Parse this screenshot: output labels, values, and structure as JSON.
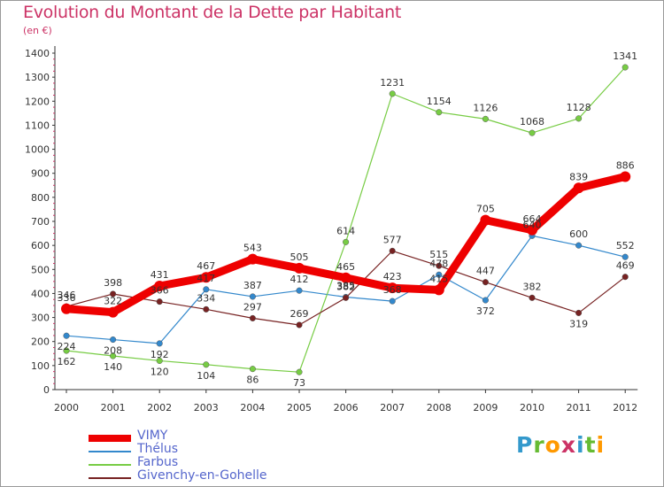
{
  "title": "Evolution du Montant de la Dette par Habitant",
  "subtitle": "(en €)",
  "logo": {
    "letters": [
      "P",
      "r",
      "o",
      "x",
      "i",
      "t",
      "i"
    ],
    "colors": [
      "#3399cc",
      "#66bb33",
      "#ff9900",
      "#cc3366",
      "#3399cc",
      "#66bb33",
      "#ff9900"
    ]
  },
  "chart_data": {
    "type": "line",
    "categories": [
      "2000",
      "2001",
      "2002",
      "2003",
      "2004",
      "2005",
      "2006",
      "2007",
      "2008",
      "2009",
      "2010",
      "2011",
      "2012"
    ],
    "ylim": [
      0,
      1400
    ],
    "yticks": [
      "0",
      "100",
      "200",
      "300",
      "400",
      "500",
      "600",
      "700",
      "800",
      "900",
      "1000",
      "1100",
      "1200",
      "1300",
      "1400"
    ],
    "grid": false,
    "legend_position": "bottom-left",
    "series": [
      {
        "name": "VIMY",
        "color": "#ee0000",
        "values": [
          336,
          322,
          431,
          467,
          543,
          505,
          465,
          423,
          415,
          705,
          664,
          839,
          886
        ]
      },
      {
        "name": "Thélus",
        "color": "#3388cc",
        "values": [
          224,
          208,
          192,
          417,
          387,
          412,
          385,
          368,
          478,
          372,
          640,
          600,
          552
        ]
      },
      {
        "name": "Farbus",
        "color": "#77cc44",
        "values": [
          162,
          140,
          120,
          104,
          86,
          73,
          614,
          1231,
          1154,
          1126,
          1068,
          1128,
          1341
        ]
      },
      {
        "name": "Givenchy-en-Gohelle",
        "color": "#772222",
        "values": [
          346,
          398,
          366,
          334,
          297,
          269,
          382,
          577,
          515,
          447,
          382,
          319,
          469
        ]
      }
    ]
  }
}
